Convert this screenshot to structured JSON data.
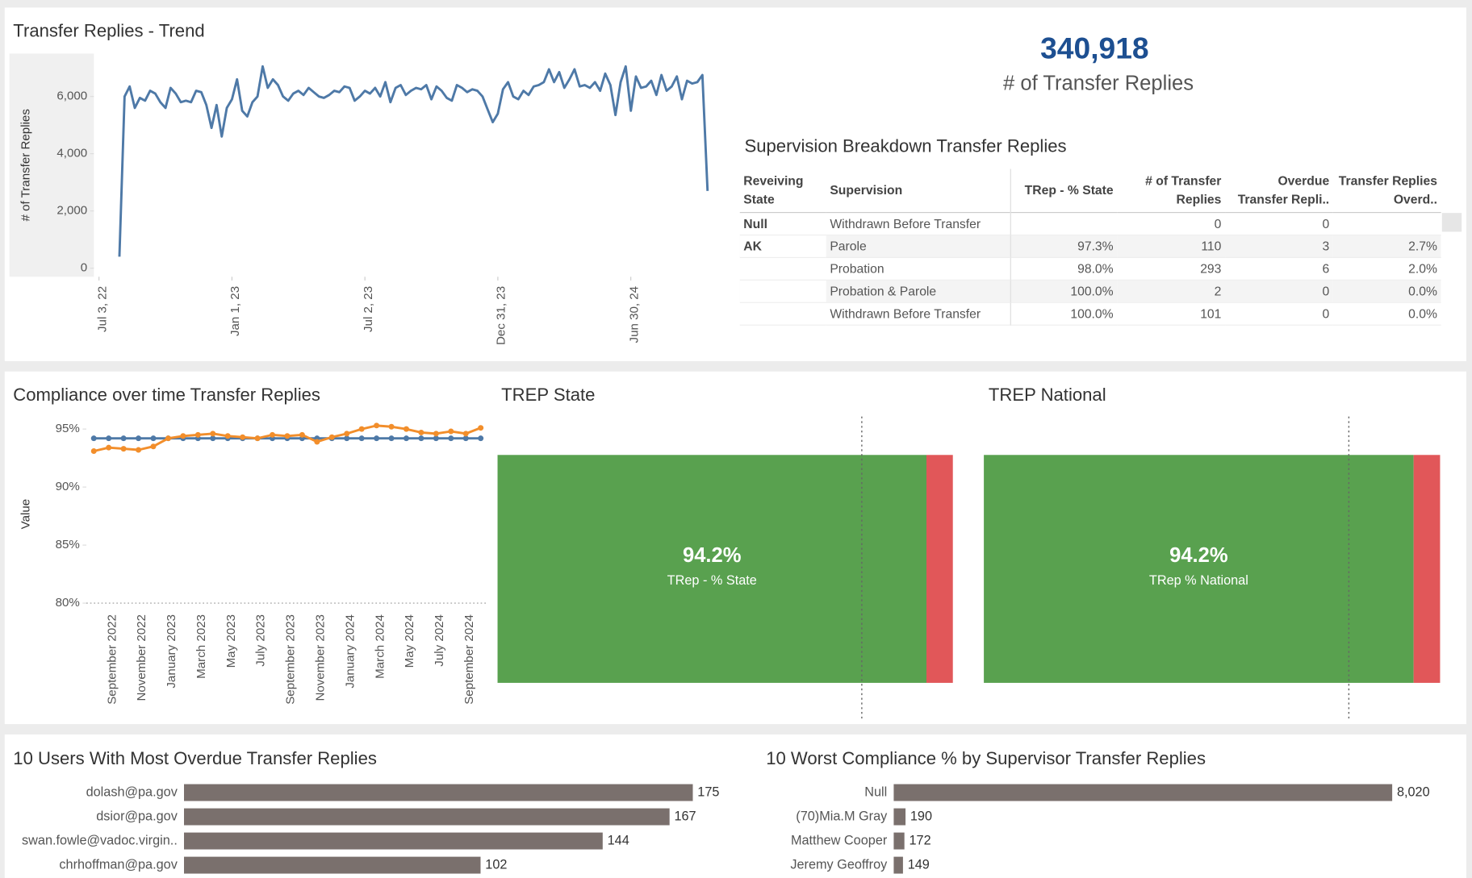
{
  "kpi": {
    "value": "340,918",
    "label": "# of Transfer Replies"
  },
  "table": {
    "title": "Supervision Breakdown Transfer Replies",
    "headers": [
      "Reveiving State",
      "Supervision",
      "TRep - % State",
      "# of Transfer Replies",
      "Overdue Transfer Repli..",
      "Transfer Replies Overd.."
    ],
    "rows": [
      [
        "Null",
        "Withdrawn Before Transfer",
        null,
        "0",
        "0",
        null
      ],
      [
        "AK",
        "Parole",
        "97.3%",
        "110",
        "3",
        "2.7%"
      ],
      [
        null,
        "Probation",
        "98.0%",
        "293",
        "6",
        "2.0%"
      ],
      [
        null,
        "Probation & Parole",
        "100.0%",
        "2",
        "0",
        "0.0%"
      ],
      [
        null,
        "Withdrawn Before Transfer",
        "100.0%",
        "101",
        "0",
        "0.0%"
      ]
    ]
  },
  "chart_data": [
    {
      "type": "line",
      "title": "Transfer Replies - Trend",
      "y_label": "# of Transfer Replies",
      "color": "#4e79a7",
      "x": [
        "2022-07-31",
        "2022-08-07",
        "2022-08-14",
        "2022-08-21",
        "2022-08-28",
        "2022-09-04",
        "2022-09-11",
        "2022-09-18",
        "2022-09-25",
        "2022-10-02",
        "2022-10-09",
        "2022-10-16",
        "2022-10-23",
        "2022-10-30",
        "2022-11-06",
        "2022-11-13",
        "2022-11-20",
        "2022-11-27",
        "2022-12-04",
        "2022-12-11",
        "2022-12-18",
        "2022-12-25",
        "2023-01-01",
        "2023-01-08",
        "2023-01-15",
        "2023-01-22",
        "2023-01-29",
        "2023-02-05",
        "2023-02-12",
        "2023-02-19",
        "2023-02-26",
        "2023-03-05",
        "2023-03-12",
        "2023-03-19",
        "2023-03-26",
        "2023-04-02",
        "2023-04-09",
        "2023-04-16",
        "2023-04-23",
        "2023-04-30",
        "2023-05-07",
        "2023-05-14",
        "2023-05-21",
        "2023-05-28",
        "2023-06-04",
        "2023-06-11",
        "2023-06-18",
        "2023-06-25",
        "2023-07-02",
        "2023-07-09",
        "2023-07-16",
        "2023-07-23",
        "2023-07-30",
        "2023-08-06",
        "2023-08-13",
        "2023-08-20",
        "2023-08-27",
        "2023-09-03",
        "2023-09-10",
        "2023-09-17",
        "2023-09-24",
        "2023-10-01",
        "2023-10-08",
        "2023-10-15",
        "2023-10-22",
        "2023-10-29",
        "2023-11-05",
        "2023-11-12",
        "2023-11-19",
        "2023-11-26",
        "2023-12-03",
        "2023-12-10",
        "2023-12-17",
        "2023-12-24",
        "2023-12-31",
        "2024-01-07",
        "2024-01-14",
        "2024-01-21",
        "2024-01-28",
        "2024-02-04",
        "2024-02-11",
        "2024-02-18",
        "2024-02-25",
        "2024-03-03",
        "2024-03-10",
        "2024-03-17",
        "2024-03-24",
        "2024-03-31",
        "2024-04-07",
        "2024-04-14",
        "2024-04-21",
        "2024-04-28",
        "2024-05-05",
        "2024-05-12",
        "2024-05-19",
        "2024-05-26",
        "2024-06-02",
        "2024-06-09",
        "2024-06-16",
        "2024-06-23",
        "2024-06-30",
        "2024-07-07",
        "2024-07-14",
        "2024-07-21",
        "2024-07-28",
        "2024-08-04",
        "2024-08-11",
        "2024-08-18",
        "2024-08-25",
        "2024-09-01",
        "2024-09-08",
        "2024-09-15",
        "2024-09-22",
        "2024-09-29",
        "2024-10-06",
        "2024-10-13"
      ],
      "values": [
        400,
        6000,
        6350,
        5600,
        5950,
        5850,
        6200,
        6100,
        5800,
        5600,
        6300,
        6100,
        5800,
        5850,
        5800,
        6200,
        6150,
        5700,
        4900,
        5700,
        4600,
        5600,
        5900,
        6600,
        5500,
        5300,
        5800,
        6000,
        7050,
        6300,
        6600,
        6400,
        6000,
        5850,
        6100,
        6200,
        6050,
        6300,
        6150,
        6000,
        5950,
        6050,
        6200,
        6150,
        6350,
        6300,
        5850,
        6000,
        6200,
        6100,
        6300,
        6000,
        6500,
        5800,
        6300,
        6400,
        6050,
        6200,
        6300,
        6250,
        6400,
        5900,
        6350,
        6200,
        5950,
        5850,
        6400,
        6300,
        6150,
        6250,
        6200,
        6000,
        5550,
        5100,
        5400,
        6250,
        6500,
        6000,
        5900,
        6200,
        6050,
        6350,
        6400,
        6500,
        6950,
        6500,
        6850,
        6300,
        6600,
        6950,
        6350,
        6400,
        6300,
        6500,
        6200,
        6800,
        6400,
        5350,
        6500,
        7050,
        5500,
        6700,
        6300,
        6350,
        6550,
        6050,
        6750,
        6200,
        6350,
        6700,
        5900,
        6550,
        6450,
        6500,
        6750,
        2700
      ],
      "xlim": [
        "2022-06-26",
        "2024-11-03"
      ],
      "xticks": [
        {
          "value": "2022-07-03",
          "label": "Jul 3, 22"
        },
        {
          "value": "2023-01-01",
          "label": "Jan 1, 23"
        },
        {
          "value": "2023-07-02",
          "label": "Jul 2, 23"
        },
        {
          "value": "2023-12-31",
          "label": "Dec 31, 23"
        },
        {
          "value": "2024-06-30",
          "label": "Jun 30, 24"
        }
      ],
      "ylim": [
        -300,
        7500
      ],
      "yticks": [
        0,
        {
          "value": 2000,
          "label": "2,000"
        },
        {
          "value": 4000,
          "label": "4,000"
        },
        {
          "value": 6000,
          "label": "6,000"
        }
      ]
    },
    {
      "type": "line",
      "title": "Compliance over time Transfer Replies",
      "y_label": "Value",
      "markers": true,
      "categories": [
        null,
        "September 2022",
        null,
        "November 2022",
        null,
        "January 2023",
        null,
        "March 2023",
        null,
        "May 2023",
        null,
        "July 2023",
        null,
        "September 2023",
        null,
        "November 2023",
        null,
        "January 2024",
        null,
        "March 2024",
        null,
        "May 2024",
        null,
        "July 2024",
        null,
        "September 2024",
        null
      ],
      "series": [
        {
          "color": "#4e79a7",
          "values": [
            94.2,
            94.2,
            94.2,
            94.2,
            94.2,
            94.2,
            94.2,
            94.2,
            94.2,
            94.2,
            94.2,
            94.2,
            94.2,
            94.2,
            94.2,
            94.2,
            94.2,
            94.2,
            94.2,
            94.2,
            94.2,
            94.2,
            94.2,
            94.2,
            94.2,
            94.2,
            94.2
          ]
        },
        {
          "color": "#f28e2b",
          "values": [
            93.1,
            93.4,
            93.3,
            93.2,
            93.5,
            94.2,
            94.4,
            94.5,
            94.6,
            94.4,
            94.3,
            94.2,
            94.5,
            94.4,
            94.5,
            93.9,
            94.3,
            94.6,
            95.0,
            95.3,
            95.2,
            95.0,
            94.7,
            94.6,
            94.8,
            94.6,
            95.1
          ]
        }
      ],
      "ylim": [
        80,
        96
      ],
      "yticks": [
        {
          "value": 80,
          "label": "80%"
        },
        {
          "value": 85,
          "label": "85%"
        },
        {
          "value": 90,
          "label": "90%"
        },
        {
          "value": 95,
          "label": "95%"
        }
      ]
    },
    {
      "type": "bar",
      "title": "TREP State",
      "measure_label": "TRep - % State",
      "series": [
        {
          "color": "#59a14f",
          "values": [
            94.2
          ]
        },
        {
          "color": "#e15759",
          "values": [
            5.8
          ]
        }
      ],
      "value_labels": [
        "94.2%"
      ],
      "xlim": [
        0,
        100
      ],
      "reference_line": 80
    },
    {
      "type": "bar",
      "title": "TREP National",
      "measure_label": "TRep % National",
      "series": [
        {
          "color": "#59a14f",
          "values": [
            94.2
          ]
        },
        {
          "color": "#e15759",
          "values": [
            5.8
          ]
        }
      ],
      "value_labels": [
        "94.2%"
      ],
      "xlim": [
        0,
        100
      ],
      "reference_line": 80
    },
    {
      "type": "bar",
      "title": "10 Users With Most Overdue Transfer Replies",
      "color": "#7a706d",
      "categories": [
        "dolash@pa.gov",
        "dsior@pa.gov",
        "swan.fowle@vadoc.virgin..",
        "chrhoffman@pa.gov"
      ],
      "values": [
        175,
        167,
        144,
        102
      ]
    },
    {
      "type": "bar",
      "title": "10 Worst Compliance % by Supervisor Transfer Replies",
      "color": "#7a706d",
      "categories": [
        "Null",
        "(70)Mia.M Gray",
        "Matthew Cooper",
        "Jeremy Geoffroy"
      ],
      "values": [
        8020,
        190,
        172,
        149
      ],
      "value_labels": [
        "8,020",
        "190",
        "172",
        "149"
      ]
    }
  ]
}
